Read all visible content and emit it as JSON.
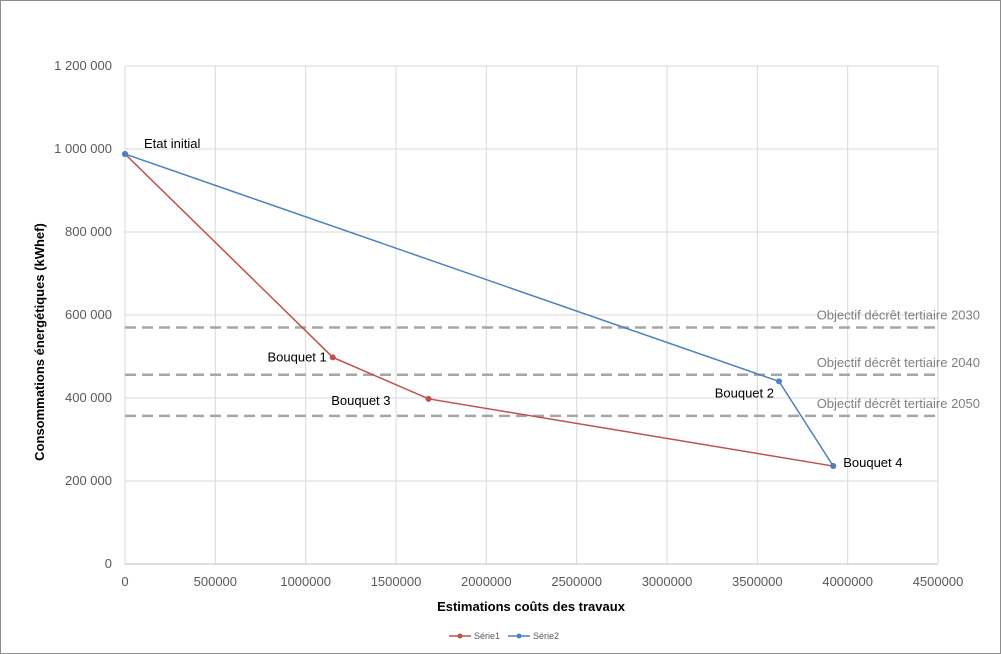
{
  "chart_data": {
    "type": "line",
    "xlabel": "Estimations coûts des travaux",
    "ylabel": "Consommations énergétiques (kWhef)",
    "xlim": [
      0,
      4500000
    ],
    "ylim": [
      0,
      1200000
    ],
    "x_ticks": [
      {
        "value": 0,
        "label": "0"
      },
      {
        "value": 500000,
        "label": "500000"
      },
      {
        "value": 1000000,
        "label": "1000000"
      },
      {
        "value": 1500000,
        "label": "1500000"
      },
      {
        "value": 2000000,
        "label": "2000000"
      },
      {
        "value": 2500000,
        "label": "2500000"
      },
      {
        "value": 3000000,
        "label": "3000000"
      },
      {
        "value": 3500000,
        "label": "3500000"
      },
      {
        "value": 4000000,
        "label": "4000000"
      },
      {
        "value": 4500000,
        "label": "4500000"
      }
    ],
    "y_ticks": [
      {
        "value": 0,
        "label": "0"
      },
      {
        "value": 200000,
        "label": "200 000"
      },
      {
        "value": 400000,
        "label": "400 000"
      },
      {
        "value": 600000,
        "label": "600 000"
      },
      {
        "value": 800000,
        "label": "800 000"
      },
      {
        "value": 1000000,
        "label": "1 000 000"
      },
      {
        "value": 1200000,
        "label": "1 200 000"
      }
    ],
    "grid": true,
    "legend_position": "bottom",
    "series": [
      {
        "name": "Série1",
        "color": "#c0504d",
        "points": [
          {
            "x": 0,
            "y": 988000,
            "label": ""
          },
          {
            "x": 1150000,
            "y": 498000,
            "label": "Bouquet 1"
          },
          {
            "x": 1680000,
            "y": 398000,
            "label": "Bouquet 3"
          },
          {
            "x": 3920000,
            "y": 236000,
            "label": ""
          }
        ]
      },
      {
        "name": "Série2",
        "color": "#4f81bd",
        "points": [
          {
            "x": 0,
            "y": 988000,
            "label": "Etat  initial"
          },
          {
            "x": 3620000,
            "y": 440000,
            "label": "Bouquet 2"
          },
          {
            "x": 3920000,
            "y": 236000,
            "label": "Bouquet 4"
          }
        ]
      }
    ],
    "reference_lines": [
      {
        "y": 570000,
        "label": "Objectif décrêt tertiaire 2030",
        "color": "#a6a6a6"
      },
      {
        "y": 456000,
        "label": "Objectif décrêt tertiaire 2040",
        "color": "#a6a6a6"
      },
      {
        "y": 357000,
        "label": "Objectif décrêt tertiaire 2050",
        "color": "#a6a6a6"
      }
    ]
  }
}
